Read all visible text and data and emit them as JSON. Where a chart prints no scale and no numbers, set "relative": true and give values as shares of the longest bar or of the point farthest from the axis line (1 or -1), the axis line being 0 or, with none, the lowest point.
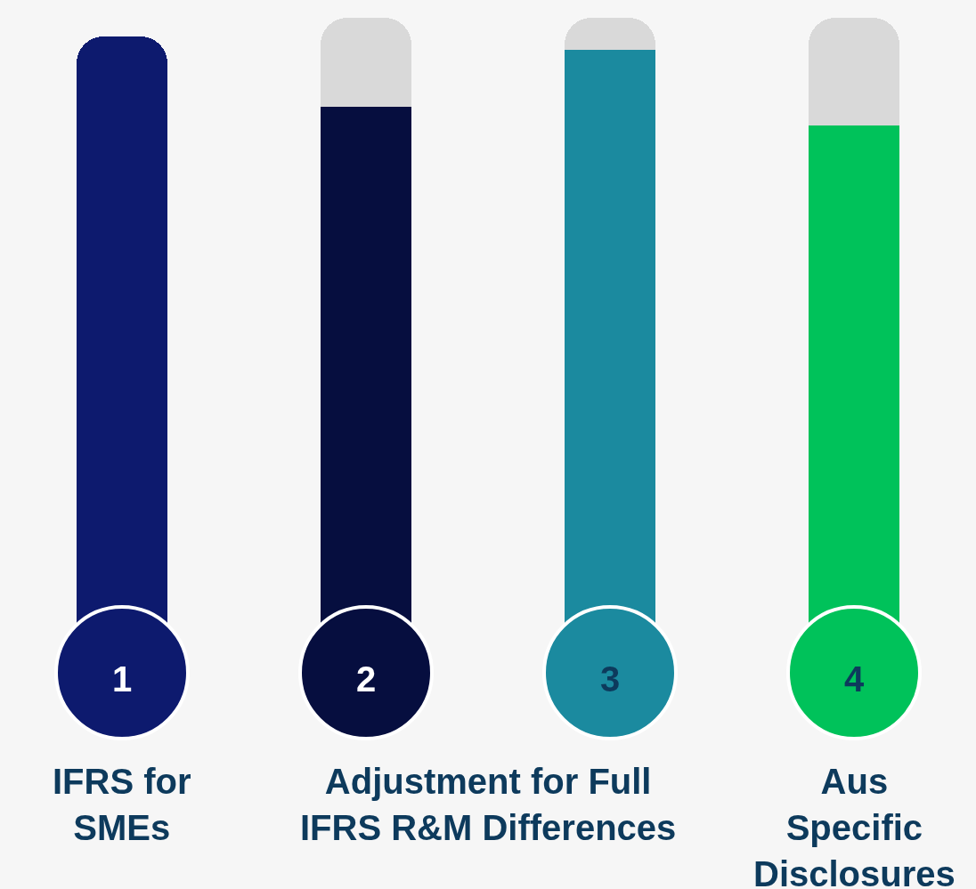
{
  "chart_data": {
    "type": "bar",
    "relative": true,
    "stacked": true,
    "categories": [
      "1",
      "2",
      "3",
      "4"
    ],
    "series": [
      {
        "colors": [
          "#0d1a6e",
          "#060e3f",
          "#1b8a9f",
          "#00c25a"
        ],
        "values": [
          0.97,
          0.86,
          0.95,
          0.83
        ]
      },
      {
        "color": "#d9d9d9",
        "values": [
          null,
          0.14,
          0.05,
          0.17
        ]
      }
    ],
    "annotations": [
      "IFRS for SMEs",
      "Adjustment for Full IFRS R&M Differences",
      "Aus Specific Disclosures"
    ],
    "grid": false
  }
}
